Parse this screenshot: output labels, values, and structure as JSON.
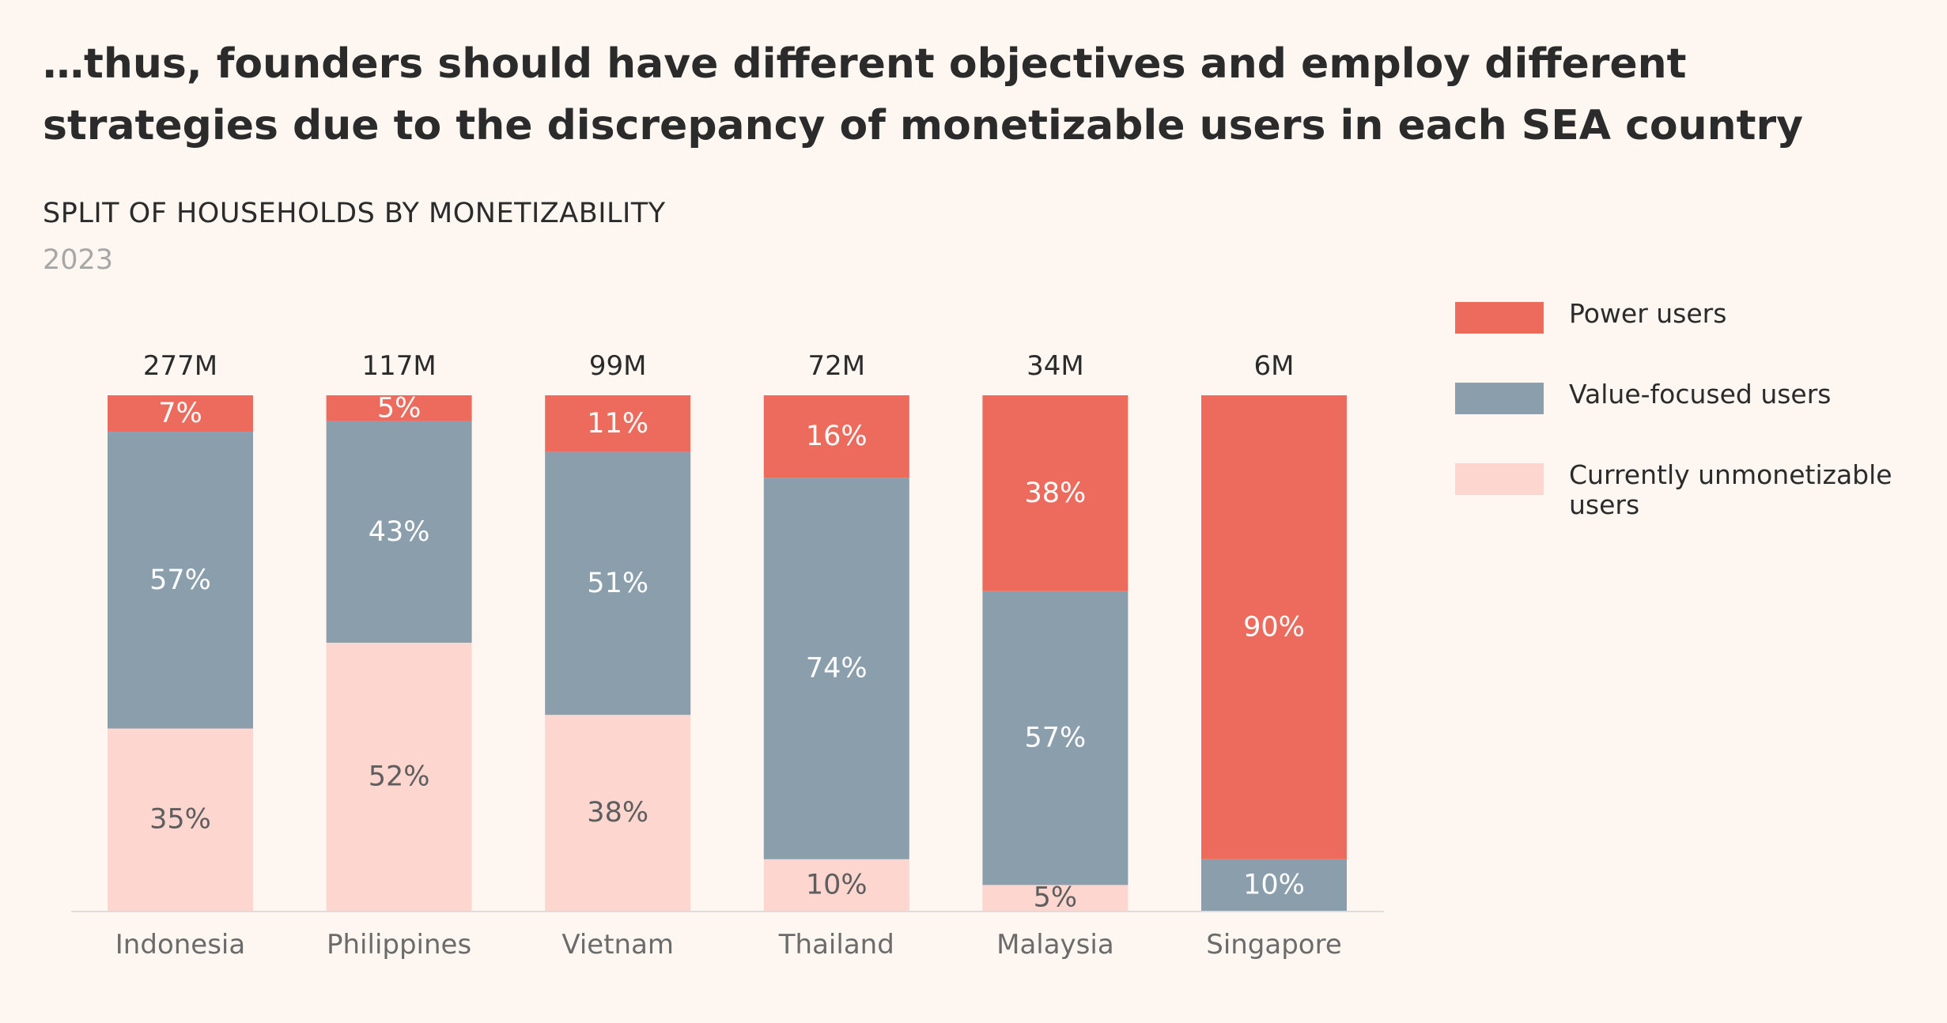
{
  "headline": "…thus, founders should have different objectives and employ different strategies due to the discrepancy of monetizable users in each SEA country",
  "subtitle": "SPLIT OF HOUSEHOLDS BY MONETIZABILITY",
  "year": "2023",
  "colors": {
    "power": "#ec6b5d",
    "value": "#8a9eac",
    "unmonetizable": "#fdd6cf",
    "background": "#fef7f1",
    "axis": "#dcdcdc"
  },
  "legend": [
    {
      "label": "Power users",
      "color": "#ec6b5d"
    },
    {
      "label": "Value-focused users",
      "color": "#8a9eac"
    },
    {
      "label": "Currently unmonetizable users",
      "color": "#fdd6cf"
    }
  ],
  "chart_data": {
    "type": "bar",
    "stacked": true,
    "normalized": true,
    "title": "SPLIT OF HOUSEHOLDS BY MONETIZABILITY",
    "subtitle": "2023",
    "categories": [
      "Indonesia",
      "Philippines",
      "Vietnam",
      "Thailand",
      "Malaysia",
      "Singapore"
    ],
    "totals": [
      "277M",
      "117M",
      "99M",
      "72M",
      "34M",
      "6M"
    ],
    "series": [
      {
        "name": "Currently unmonetizable users",
        "color": "#fdd6cf",
        "values": [
          35,
          52,
          38,
          10,
          5,
          0
        ]
      },
      {
        "name": "Value-focused users",
        "color": "#8a9eac",
        "values": [
          57,
          43,
          51,
          74,
          57,
          10
        ]
      },
      {
        "name": "Power users",
        "color": "#ec6b5d",
        "values": [
          7,
          5,
          11,
          16,
          38,
          90
        ]
      }
    ],
    "ylim": [
      0,
      100
    ],
    "grid": false,
    "legend_position": "right"
  }
}
